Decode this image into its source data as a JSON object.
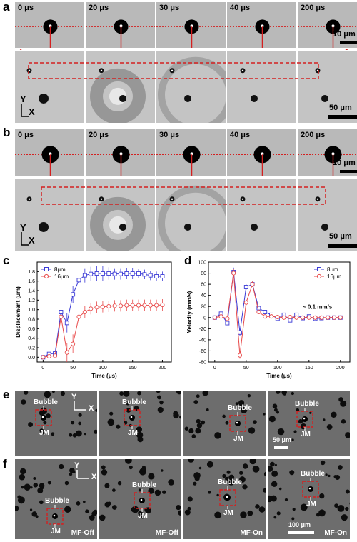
{
  "panels": {
    "a": {
      "label": "a",
      "times": [
        "0 μs",
        "20 μs",
        "30 μs",
        "40 μs",
        "200 μs"
      ],
      "scale_top": "10 μm",
      "scale_bottom": "50 μm",
      "axis_y": "Y",
      "axis_x": "X"
    },
    "b": {
      "label": "b",
      "times": [
        "0 μs",
        "20 μs",
        "30 μs",
        "40 μs",
        "200 μs"
      ],
      "scale_top": "10 μm",
      "scale_bottom": "50 μm",
      "axis_y": "Y",
      "axis_x": "X"
    },
    "c": {
      "label": "c"
    },
    "d": {
      "label": "d"
    },
    "e": {
      "label": "e",
      "bubble": "Bubble",
      "jm": "JM",
      "axis_y": "Y",
      "axis_x": "X",
      "scale": "50 μm"
    },
    "f": {
      "label": "f",
      "bubble": "Bubble",
      "jm": "JM",
      "axis_y": "Y",
      "axis_x": "X",
      "scale": "100 μm",
      "conditions": [
        "MF-Off",
        "MF-Off",
        "MF-On",
        "MF-On"
      ]
    }
  },
  "colors": {
    "series_8um": "#3b3bd6",
    "series_16um": "#e84a4a",
    "annotation_red": "#d42020"
  },
  "chart_data": [
    {
      "type": "line",
      "panel": "c",
      "xlabel": "Time (μs)",
      "ylabel": "Displacement (μm)",
      "xlim": [
        -10,
        215
      ],
      "ylim": [
        -0.1,
        2.0
      ],
      "xticks": [
        0,
        50,
        100,
        150,
        200
      ],
      "yticks": [
        0.0,
        0.2,
        0.4,
        0.6,
        0.8,
        1.0,
        1.2,
        1.4,
        1.6,
        1.8
      ],
      "legend_position": "top-left",
      "series": [
        {
          "name": "8μm",
          "marker": "square",
          "x": [
            0,
            10,
            20,
            30,
            40,
            50,
            60,
            70,
            80,
            90,
            100,
            110,
            120,
            130,
            140,
            150,
            160,
            170,
            180,
            190,
            200
          ],
          "y": [
            0.0,
            0.07,
            0.08,
            0.95,
            0.72,
            1.32,
            1.62,
            1.72,
            1.75,
            1.76,
            1.76,
            1.76,
            1.75,
            1.75,
            1.76,
            1.76,
            1.76,
            1.74,
            1.72,
            1.7,
            1.7
          ],
          "err": [
            0.03,
            0.04,
            0.04,
            0.15,
            0.2,
            0.18,
            0.16,
            0.15,
            0.15,
            0.15,
            0.15,
            0.13,
            0.12,
            0.12,
            0.12,
            0.12,
            0.1,
            0.1,
            0.1,
            0.1,
            0.1
          ]
        },
        {
          "name": "16μm",
          "marker": "circle",
          "x": [
            0,
            10,
            20,
            30,
            40,
            50,
            60,
            70,
            80,
            90,
            100,
            110,
            120,
            130,
            140,
            150,
            160,
            170,
            180,
            190,
            200
          ],
          "y": [
            0.0,
            0.02,
            0.03,
            0.85,
            0.1,
            0.28,
            0.85,
            0.95,
            1.02,
            1.05,
            1.06,
            1.07,
            1.08,
            1.08,
            1.09,
            1.09,
            1.09,
            1.09,
            1.09,
            1.09,
            1.1
          ],
          "err": [
            0.02,
            0.03,
            0.04,
            0.15,
            0.2,
            0.2,
            0.15,
            0.12,
            0.12,
            0.12,
            0.12,
            0.12,
            0.12,
            0.12,
            0.12,
            0.12,
            0.12,
            0.12,
            0.12,
            0.12,
            0.12
          ]
        }
      ]
    },
    {
      "type": "line",
      "panel": "d",
      "xlabel": "Time (μs)",
      "ylabel": "Velocity (mm/s)",
      "xlim": [
        -10,
        215
      ],
      "ylim": [
        -80,
        100
      ],
      "xticks": [
        0,
        50,
        100,
        150,
        200
      ],
      "yticks": [
        -80,
        -60,
        -40,
        -20,
        0,
        20,
        40,
        60,
        80,
        100
      ],
      "legend_position": "top-right",
      "annotation": "~ 0.1 mm/s",
      "series": [
        {
          "name": "8μm",
          "marker": "square",
          "x": [
            0,
            10,
            20,
            30,
            40,
            50,
            60,
            70,
            80,
            90,
            100,
            110,
            120,
            130,
            140,
            150,
            160,
            170,
            180,
            190,
            200
          ],
          "y": [
            0,
            7,
            -10,
            82,
            -27,
            55,
            60,
            17,
            10,
            5,
            -2,
            5,
            -5,
            5,
            -1,
            2,
            -2,
            -1,
            0,
            0,
            0
          ],
          "err": [
            2,
            3,
            3,
            8,
            6,
            5,
            5,
            3,
            3,
            3,
            3,
            3,
            3,
            3,
            3,
            2,
            2,
            2,
            2,
            2,
            2
          ]
        },
        {
          "name": "16μm",
          "marker": "circle",
          "x": [
            0,
            10,
            20,
            30,
            40,
            50,
            60,
            70,
            80,
            90,
            100,
            110,
            120,
            130,
            140,
            150,
            160,
            170,
            180,
            190,
            200
          ],
          "y": [
            0,
            2,
            -2,
            80,
            -68,
            27,
            60,
            10,
            2,
            2,
            1,
            0,
            1,
            0,
            0,
            0,
            0,
            0,
            0,
            0,
            0
          ],
          "err": [
            2,
            2,
            2,
            8,
            6,
            5,
            5,
            3,
            3,
            2,
            2,
            2,
            2,
            2,
            2,
            2,
            2,
            2,
            2,
            2,
            2
          ]
        }
      ]
    }
  ]
}
